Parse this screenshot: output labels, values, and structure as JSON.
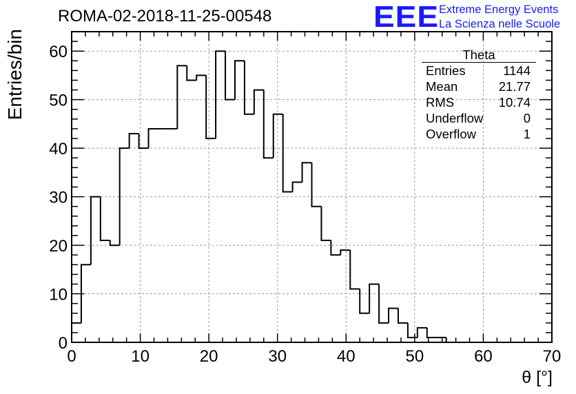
{
  "title": "ROMA-02-2018-11-25-00548",
  "logo": {
    "mark": "EEE",
    "line1": "Extreme Energy Events",
    "line2": "La Scienza nelle Scuole",
    "color": "#1a1aff"
  },
  "stats": {
    "title": "Theta",
    "rows": [
      {
        "label": "Entries",
        "value": "1144"
      },
      {
        "label": "Mean",
        "value": "21.77"
      },
      {
        "label": "RMS",
        "value": "10.74"
      },
      {
        "label": "Underflow",
        "value": "0"
      },
      {
        "label": "Overflow",
        "value": "1"
      }
    ]
  },
  "chart_data": {
    "type": "histogram",
    "xlabel": "θ [°]",
    "ylabel": "Entries/bin",
    "xlim": [
      0,
      70
    ],
    "ylim": [
      0,
      64
    ],
    "bin_width": 1.4,
    "bin_start": 0,
    "values": [
      4,
      16,
      30,
      21,
      20,
      40,
      43,
      40,
      44,
      44,
      44,
      57,
      54,
      55,
      42,
      60,
      50,
      58,
      47,
      52,
      38,
      47,
      31,
      33,
      37,
      28,
      21,
      18,
      19,
      11,
      6,
      12,
      4,
      7,
      4,
      1,
      3,
      1,
      1
    ],
    "xticks": [
      0,
      10,
      20,
      30,
      40,
      50,
      60,
      70
    ],
    "yticks": [
      0,
      10,
      20,
      30,
      40,
      50,
      60
    ],
    "grid": true,
    "line_color": "#000000"
  }
}
